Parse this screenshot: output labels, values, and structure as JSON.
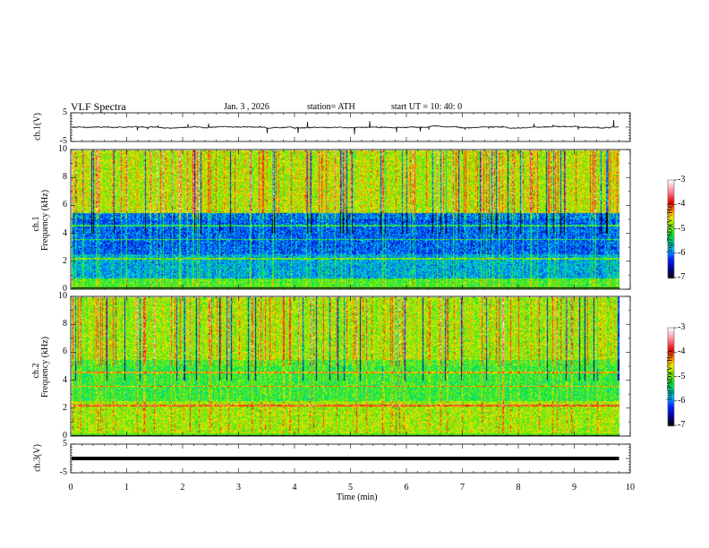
{
  "header": {
    "title": "VLF  Spectra",
    "date": "Jan.  3  , 2026",
    "station": "station= ATH",
    "start": "start  UT  =    10: 40: 0"
  },
  "chart_data": [
    {
      "type": "line",
      "name": "ch1-waveform",
      "ylabel": "ch.1(V)",
      "ylim": [
        -5,
        5
      ],
      "yticks": [
        "5",
        "-5"
      ],
      "xlim": [
        0,
        10
      ]
    },
    {
      "type": "heatmap",
      "name": "ch1-spectrogram",
      "ylabel": "ch.1\nFrequency  (kHz)",
      "ylabel_top": "ch.1",
      "ylabel_main": "Frequency  (kHz)",
      "ylim": [
        0,
        10
      ],
      "yticks": [
        "0",
        "2",
        "4",
        "6",
        "8",
        "10"
      ],
      "xlim": [
        0,
        10
      ],
      "data_end_min": 9.8,
      "colorbar": {
        "label": "log(PSD)(V²/Hz)",
        "range": [
          -7,
          -3
        ],
        "ticks": [
          "-3",
          "-4",
          "-5",
          "-6",
          "-7"
        ]
      }
    },
    {
      "type": "heatmap",
      "name": "ch2-spectrogram",
      "ylabel_top": "ch.2",
      "ylabel_main": "Frequency  (kHz)",
      "ylim": [
        0,
        10
      ],
      "yticks": [
        "0",
        "2",
        "4",
        "6",
        "8",
        "10"
      ],
      "xlim": [
        0,
        10
      ],
      "data_end_min": 9.8,
      "colorbar": {
        "label": "log(PSD)(V²/Hz)",
        "range": [
          -7,
          -3
        ],
        "ticks": [
          "-3",
          "-4",
          "-5",
          "-6",
          "-7"
        ]
      }
    },
    {
      "type": "line",
      "name": "ch3-waveform",
      "ylabel": "ch.3(V)",
      "ylim": [
        -5,
        5
      ],
      "yticks": [
        "5",
        "-5"
      ],
      "xlim": [
        0,
        10
      ]
    }
  ],
  "xaxis": {
    "label": "Time  (min)",
    "ticks": [
      "0",
      "1",
      "2",
      "3",
      "4",
      "5",
      "6",
      "7",
      "8",
      "9",
      "10"
    ]
  }
}
